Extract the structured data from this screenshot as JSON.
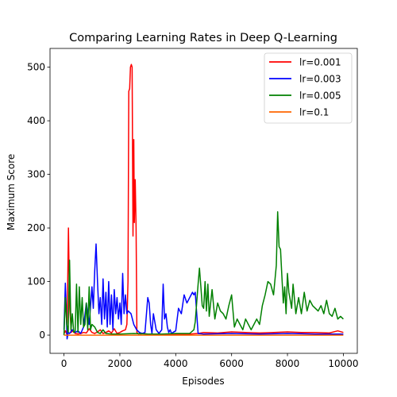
{
  "chart_data": {
    "type": "line",
    "title": "Comparing Learning Rates in Deep Q-Learning",
    "xlabel": "Episodes",
    "ylabel": "Maximum Score",
    "xlim": [
      -500,
      10500
    ],
    "ylim": [
      -34,
      535
    ],
    "x_ticks": [
      0,
      2000,
      4000,
      6000,
      8000,
      10000
    ],
    "y_ticks": [
      0,
      100,
      200,
      300,
      400,
      500
    ],
    "legend_position": "top-right",
    "grid": false,
    "series": [
      {
        "name": "lr=0.001",
        "color": "#ff0000",
        "x": [
          0,
          50,
          100,
          130,
          160,
          200,
          260,
          320,
          400,
          500,
          600,
          700,
          800,
          900,
          1000,
          1100,
          1200,
          1300,
          1400,
          1500,
          1600,
          1700,
          1800,
          1900,
          2000,
          2100,
          2200,
          2250,
          2290,
          2320,
          2350,
          2380,
          2410,
          2440,
          2470,
          2500,
          2520,
          2550,
          2580,
          2610,
          2640,
          2680,
          2700,
          2750,
          2800,
          3000,
          3500,
          4000,
          4500,
          4800,
          5000,
          5500,
          6000,
          6500,
          7000,
          7500,
          8000,
          8500,
          9000,
          9500,
          9800,
          10000
        ],
        "values": [
          3,
          8,
          2,
          90,
          200,
          60,
          5,
          8,
          3,
          2,
          3,
          5,
          4,
          12,
          5,
          3,
          6,
          10,
          3,
          5,
          8,
          4,
          12,
          3,
          5,
          8,
          10,
          20,
          100,
          455,
          460,
          500,
          505,
          500,
          185,
          365,
          210,
          290,
          200,
          5,
          3,
          2,
          3,
          2,
          3,
          2,
          2,
          2,
          2,
          3,
          5,
          4,
          6,
          5,
          4,
          5,
          6,
          5,
          5,
          4,
          8,
          5
        ]
      },
      {
        "name": "lr=0.003",
        "color": "#0000ff",
        "x": [
          0,
          50,
          80,
          110,
          150,
          200,
          300,
          400,
          500,
          600,
          700,
          800,
          900,
          1000,
          1050,
          1100,
          1150,
          1200,
          1250,
          1300,
          1350,
          1400,
          1450,
          1500,
          1550,
          1600,
          1650,
          1700,
          1750,
          1800,
          1850,
          1900,
          1950,
          2000,
          2050,
          2100,
          2150,
          2200,
          2250,
          2300,
          2400,
          2500,
          2600,
          2700,
          2800,
          2900,
          3000,
          3050,
          3100,
          3150,
          3200,
          3300,
          3400,
          3500,
          3550,
          3600,
          3650,
          3700,
          3750,
          3800,
          3850,
          3900,
          4000,
          4100,
          4200,
          4300,
          4400,
          4500,
          4600,
          4650,
          4700,
          4800,
          5000,
          6000,
          7000,
          8000,
          9000,
          10000
        ],
        "values": [
          10,
          97,
          50,
          -7,
          5,
          3,
          10,
          5,
          8,
          3,
          15,
          60,
          20,
          90,
          50,
          120,
          170,
          100,
          40,
          70,
          20,
          105,
          30,
          80,
          15,
          100,
          20,
          75,
          10,
          85,
          40,
          70,
          30,
          60,
          20,
          115,
          40,
          75,
          40,
          45,
          40,
          20,
          10,
          5,
          3,
          5,
          70,
          60,
          20,
          3,
          40,
          10,
          3,
          10,
          95,
          30,
          40,
          15,
          5,
          10,
          3,
          5,
          8,
          50,
          40,
          75,
          60,
          70,
          80,
          75,
          80,
          3,
          2,
          3,
          2,
          3,
          2,
          2
        ]
      },
      {
        "name": "lr=0.005",
        "color": "#008000",
        "x": [
          0,
          50,
          100,
          150,
          200,
          250,
          300,
          350,
          400,
          450,
          500,
          550,
          600,
          650,
          700,
          750,
          800,
          850,
          900,
          950,
          1000,
          1100,
          1200,
          1300,
          1400,
          1500,
          1700,
          2000,
          2500,
          3000,
          3500,
          4000,
          4500,
          4650,
          4700,
          4750,
          4800,
          4850,
          4900,
          4950,
          5000,
          5050,
          5100,
          5150,
          5200,
          5250,
          5300,
          5400,
          5500,
          5600,
          5700,
          5800,
          5900,
          6000,
          6100,
          6200,
          6300,
          6400,
          6500,
          6600,
          6700,
          6800,
          6900,
          7000,
          7100,
          7200,
          7300,
          7400,
          7500,
          7600,
          7650,
          7700,
          7750,
          7800,
          7850,
          7900,
          7950,
          8000,
          8050,
          8100,
          8150,
          8200,
          8300,
          8400,
          8500,
          8600,
          8700,
          8800,
          8900,
          9000,
          9100,
          9200,
          9300,
          9400,
          9500,
          9600,
          9700,
          9800,
          9900,
          10000
        ],
        "values": [
          0,
          70,
          20,
          5,
          140,
          10,
          40,
          5,
          8,
          95,
          5,
          90,
          20,
          70,
          15,
          20,
          60,
          10,
          90,
          10,
          20,
          15,
          5,
          3,
          10,
          3,
          2,
          2,
          3,
          2,
          2,
          3,
          3,
          10,
          25,
          60,
          95,
          125,
          90,
          55,
          50,
          100,
          45,
          95,
          35,
          60,
          85,
          30,
          60,
          45,
          40,
          30,
          55,
          75,
          15,
          30,
          20,
          10,
          30,
          20,
          10,
          20,
          30,
          20,
          55,
          75,
          100,
          95,
          75,
          130,
          230,
          165,
          160,
          110,
          60,
          90,
          40,
          115,
          80,
          65,
          50,
          95,
          40,
          70,
          40,
          80,
          45,
          65,
          55,
          50,
          45,
          55,
          40,
          65,
          40,
          35,
          50,
          30,
          35,
          30
        ]
      },
      {
        "name": "lr=0.1",
        "color": "#ff6600",
        "x": [
          0,
          2000,
          4000,
          6000,
          8000,
          10000
        ],
        "values": [
          0,
          0,
          0,
          0,
          0,
          0
        ]
      }
    ]
  }
}
